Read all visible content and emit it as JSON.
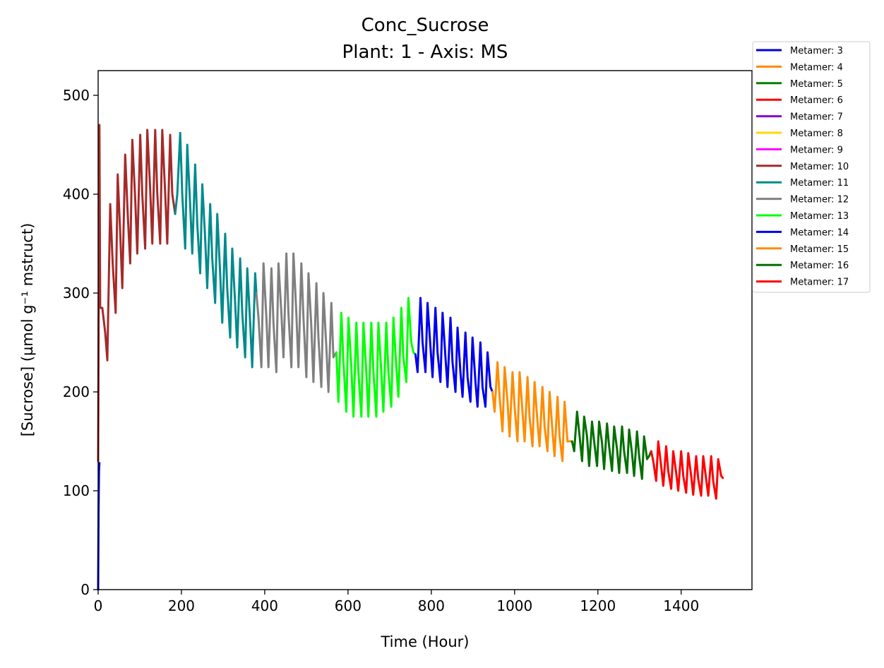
{
  "chart_data": {
    "type": "line",
    "title": "Conc_Sucrose",
    "subtitle": "Plant: 1 - Axis: MS",
    "xlabel": "Time (Hour)",
    "ylabel": "[Sucrose] (µmol g⁻¹ mstruct)",
    "xlim": [
      0,
      1570
    ],
    "ylim": [
      0,
      525
    ],
    "xticks": [
      0,
      200,
      400,
      600,
      800,
      1000,
      1200,
      1400
    ],
    "yticks": [
      0,
      100,
      200,
      300,
      400,
      500
    ],
    "grid": false,
    "legend_position": "top-right outside",
    "series": [
      {
        "name": "Metamer: 3",
        "color": "#0000dd",
        "x": [
          0,
          0.5,
          1,
          2,
          3
        ],
        "y": [
          0,
          40,
          80,
          120,
          128
        ]
      },
      {
        "name": "Metamer: 4",
        "color": "#ff8800",
        "x": [],
        "y": []
      },
      {
        "name": "Metamer: 5",
        "color": "#008000",
        "x": [],
        "y": []
      },
      {
        "name": "Metamer: 6",
        "color": "#ff0000",
        "x": [],
        "y": []
      },
      {
        "name": "Metamer: 7",
        "color": "#8800cc",
        "x": [],
        "y": []
      },
      {
        "name": "Metamer: 8",
        "color": "#ffd700",
        "x": [],
        "y": []
      },
      {
        "name": "Metamer: 9",
        "color": "#ff00ff",
        "x": [],
        "y": []
      },
      {
        "name": "Metamer: 10",
        "color": "#a52a2a",
        "x": [
          0,
          3,
          5,
          10,
          17,
          22,
          29,
          35,
          42,
          47,
          53,
          58,
          65,
          71,
          77,
          82,
          89,
          94,
          101,
          106,
          113,
          118,
          125,
          130,
          137,
          142,
          149,
          154,
          161,
          166,
          173,
          178,
          185
        ],
        "y": [
          130,
          470,
          285,
          285,
          260,
          232,
          390,
          330,
          280,
          420,
          360,
          305,
          440,
          380,
          330,
          455,
          395,
          340,
          460,
          400,
          345,
          465,
          405,
          350,
          465,
          400,
          350,
          465,
          400,
          350,
          460,
          400,
          380
        ]
      },
      {
        "name": "Metamer: 11",
        "color": "#008b8b",
        "x": [
          185,
          190,
          197,
          202,
          209,
          214,
          221,
          226,
          233,
          238,
          245,
          250,
          257,
          262,
          269,
          274,
          281,
          286,
          293,
          298,
          305,
          310,
          317,
          322,
          329,
          334,
          341,
          346,
          353,
          358,
          365,
          370,
          377,
          380
        ],
        "y": [
          380,
          400,
          462,
          400,
          345,
          450,
          390,
          340,
          430,
          370,
          320,
          410,
          355,
          305,
          390,
          335,
          290,
          380,
          320,
          270,
          360,
          305,
          255,
          345,
          290,
          245,
          335,
          280,
          235,
          325,
          270,
          225,
          320,
          300
        ]
      },
      {
        "name": "Metamer: 12",
        "color": "#808080",
        "x": [
          380,
          385,
          392,
          397,
          404,
          409,
          416,
          421,
          428,
          433,
          440,
          445,
          452,
          457,
          464,
          469,
          476,
          481,
          488,
          493,
          500,
          505,
          512,
          517,
          524,
          529,
          536,
          541,
          548,
          553,
          560,
          565,
          572
        ],
        "y": [
          300,
          275,
          225,
          330,
          275,
          225,
          325,
          270,
          220,
          330,
          280,
          235,
          340,
          280,
          225,
          340,
          280,
          225,
          330,
          275,
          215,
          320,
          265,
          210,
          310,
          255,
          205,
          300,
          245,
          200,
          290,
          235,
          240
        ]
      },
      {
        "name": "Metamer: 13",
        "color": "#00ff00",
        "x": [
          572,
          577,
          584,
          589,
          596,
          601,
          608,
          613,
          620,
          625,
          632,
          637,
          644,
          649,
          656,
          661,
          668,
          673,
          680,
          685,
          692,
          697,
          704,
          709,
          716,
          721,
          728,
          733,
          740,
          745,
          752,
          757,
          762
        ],
        "y": [
          240,
          190,
          280,
          230,
          180,
          275,
          225,
          175,
          270,
          220,
          175,
          270,
          220,
          175,
          270,
          220,
          175,
          270,
          220,
          180,
          270,
          220,
          185,
          275,
          225,
          195,
          285,
          235,
          210,
          295,
          250,
          240,
          238
        ]
      },
      {
        "name": "Metamer: 14",
        "color": "#0000ee",
        "x": [
          762,
          767,
          774,
          779,
          786,
          791,
          798,
          803,
          810,
          815,
          822,
          827,
          834,
          839,
          846,
          851,
          858,
          863,
          870,
          875,
          882,
          887,
          894,
          899,
          906,
          911,
          918,
          923,
          930,
          935,
          942,
          947
        ],
        "y": [
          238,
          220,
          295,
          250,
          220,
          290,
          245,
          215,
          285,
          240,
          210,
          280,
          235,
          205,
          275,
          230,
          200,
          265,
          220,
          195,
          260,
          215,
          190,
          255,
          210,
          185,
          250,
          205,
          185,
          240,
          205,
          200
        ]
      },
      {
        "name": "Metamer: 15",
        "color": "#ff8c00",
        "x": [
          947,
          952,
          959,
          964,
          971,
          976,
          983,
          988,
          995,
          1000,
          1007,
          1012,
          1019,
          1024,
          1031,
          1036,
          1043,
          1048,
          1055,
          1060,
          1067,
          1072,
          1079,
          1084,
          1091,
          1096,
          1103,
          1108,
          1115,
          1120,
          1127,
          1132,
          1138
        ],
        "y": [
          200,
          180,
          230,
          195,
          160,
          225,
          190,
          155,
          220,
          185,
          150,
          220,
          180,
          150,
          215,
          175,
          145,
          210,
          170,
          145,
          205,
          165,
          140,
          200,
          160,
          135,
          195,
          155,
          130,
          190,
          150,
          150,
          150
        ]
      },
      {
        "name": "Metamer: 16",
        "color": "#007000",
        "x": [
          1138,
          1143,
          1150,
          1155,
          1162,
          1167,
          1174,
          1179,
          1186,
          1191,
          1198,
          1203,
          1210,
          1215,
          1222,
          1227,
          1234,
          1239,
          1246,
          1251,
          1258,
          1263,
          1270,
          1275,
          1282,
          1287,
          1294,
          1299,
          1306,
          1311,
          1318,
          1323,
          1328
        ],
        "y": [
          150,
          140,
          180,
          160,
          130,
          175,
          155,
          125,
          170,
          150,
          125,
          170,
          148,
          122,
          168,
          145,
          120,
          165,
          142,
          118,
          165,
          140,
          118,
          162,
          138,
          115,
          160,
          135,
          112,
          155,
          132,
          135,
          140
        ]
      },
      {
        "name": "Metamer: 17",
        "color": "#ff0000",
        "x": [
          1328,
          1333,
          1340,
          1345,
          1352,
          1357,
          1364,
          1369,
          1376,
          1381,
          1388,
          1393,
          1400,
          1405,
          1412,
          1417,
          1424,
          1429,
          1436,
          1441,
          1448,
          1453,
          1460,
          1465,
          1472,
          1477,
          1484,
          1489,
          1496,
          1500
        ],
        "y": [
          140,
          130,
          110,
          150,
          125,
          105,
          145,
          120,
          102,
          140,
          118,
          100,
          140,
          115,
          98,
          138,
          115,
          96,
          135,
          112,
          95,
          135,
          112,
          95,
          135,
          110,
          92,
          132,
          115,
          113
        ]
      }
    ]
  }
}
